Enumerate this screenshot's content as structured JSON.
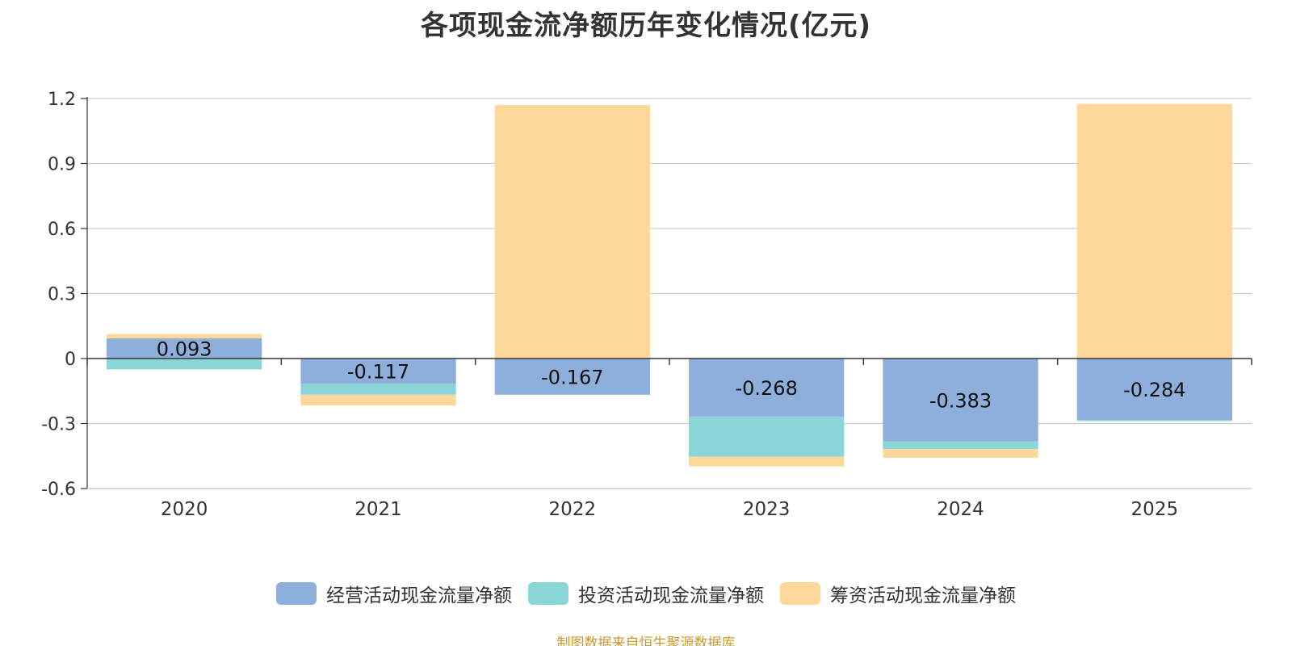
{
  "chart_data": {
    "type": "bar",
    "stacked": true,
    "title": "各项现金流净额历年变化情况(亿元)",
    "categories": [
      "2020",
      "2021",
      "2022",
      "2023",
      "2024",
      "2025"
    ],
    "series": [
      {
        "name": "经营活动现金流量净额",
        "color": "#8eaedc",
        "values": [
          0.093,
          -0.117,
          -0.167,
          -0.268,
          -0.383,
          -0.284
        ],
        "labels": [
          "0.093",
          "-0.117",
          "-0.167",
          "-0.268",
          "-0.383",
          "-0.284"
        ]
      },
      {
        "name": "投资活动现金流量净额",
        "color": "#88d6d8",
        "values": [
          -0.05,
          -0.05,
          0.0,
          -0.185,
          -0.035,
          -0.005
        ]
      },
      {
        "name": "筹资活动现金流量净额",
        "color": "#fdd89a",
        "values": [
          0.02,
          -0.05,
          1.17,
          -0.045,
          -0.04,
          1.175
        ]
      }
    ],
    "ylim": [
      -0.6,
      1.2
    ],
    "yticks": [
      -0.6,
      -0.3,
      0,
      0.3,
      0.6,
      0.9,
      1.2
    ],
    "ytick_labels": [
      "-0.6",
      "-0.3",
      "0",
      "0.3",
      "0.6",
      "0.9",
      "1.2"
    ],
    "grid": true,
    "legend_position": "bottom"
  },
  "source_note": "制图数据来自恒生聚源数据库"
}
